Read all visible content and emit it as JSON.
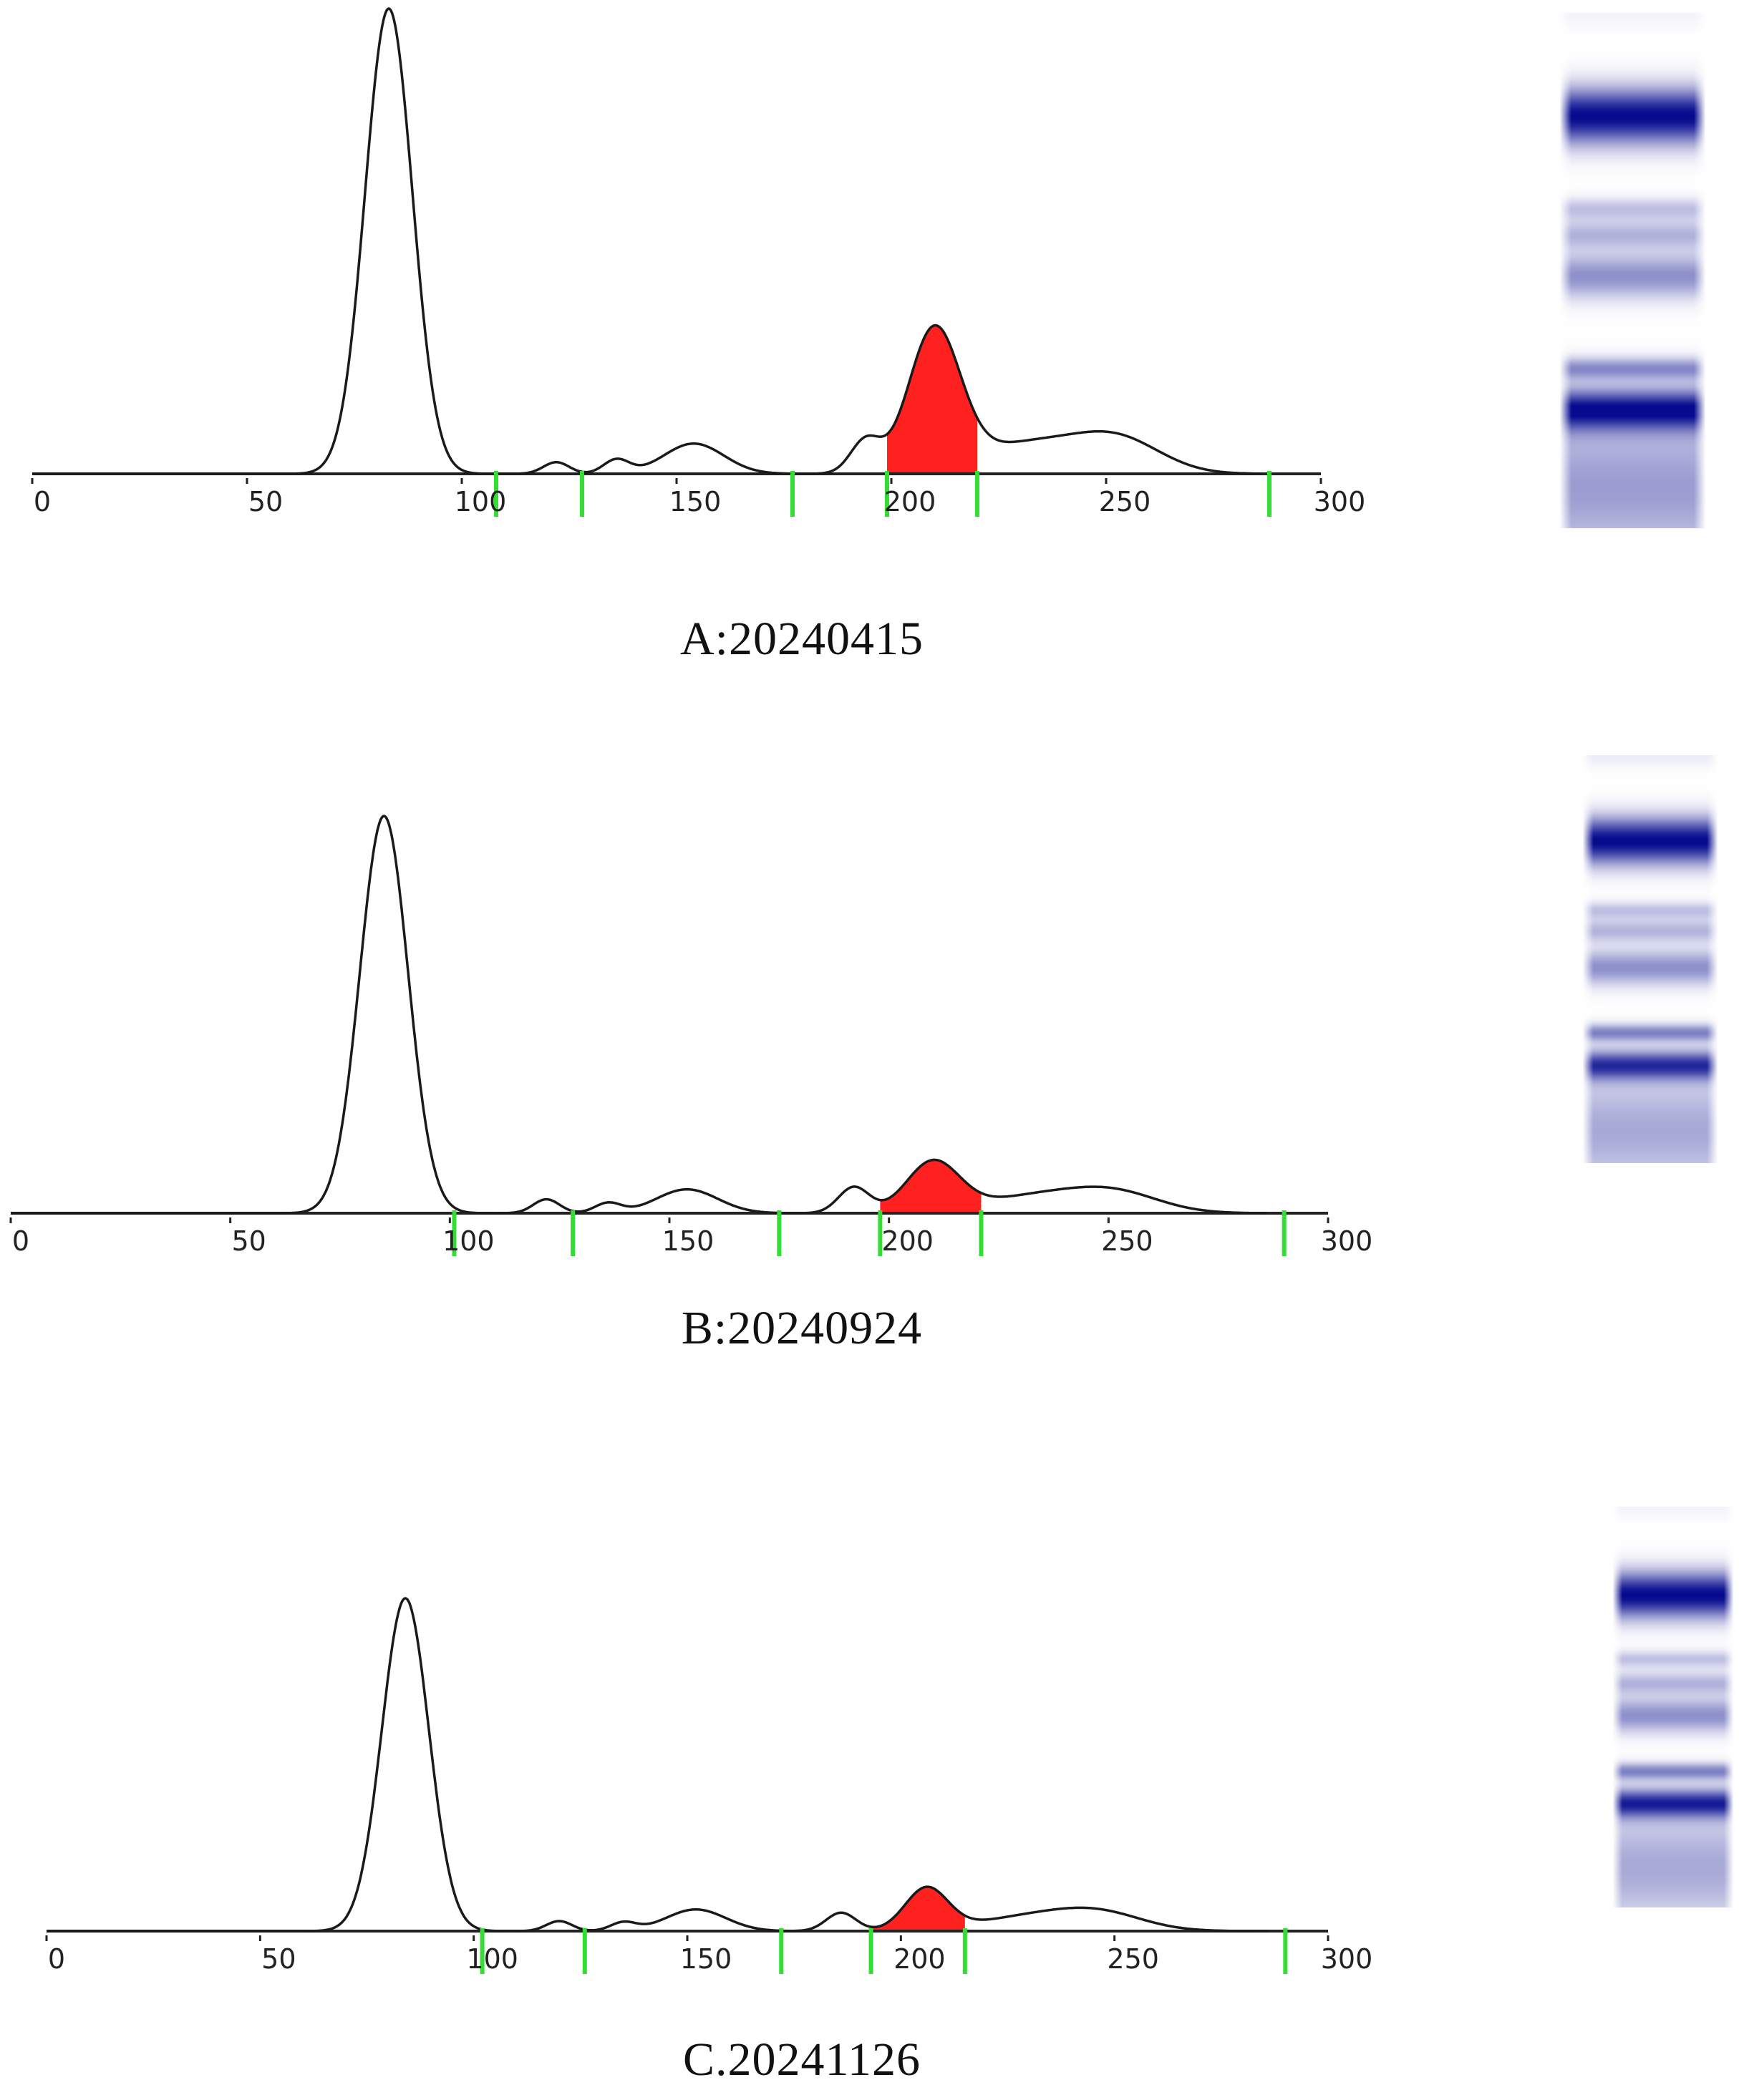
{
  "colors": {
    "trace": "#1a1a1a",
    "highlight": "#ff2020",
    "separator": "#33dd33",
    "band_dark": "#050a7a",
    "band_light": "#8a8fd0"
  },
  "panels": [
    {
      "caption": "A:20240415",
      "chart_data": {
        "type": "line",
        "x_ticks": [
          "0",
          "50",
          "100",
          "150",
          "200",
          "250",
          "300"
        ],
        "xlim": [
          0,
          300
        ],
        "ylim": [
          0,
          100
        ],
        "separators_x": [
          108,
          128,
          177,
          199,
          220,
          288
        ],
        "highlight_range": [
          199,
          220
        ],
        "peaks": [
          {
            "x": 83,
            "y": 100,
            "w": 5.5
          },
          {
            "x": 122,
            "y": 2.5,
            "w": 3
          },
          {
            "x": 136,
            "y": 3,
            "w": 3
          },
          {
            "x": 154,
            "y": 6.5,
            "w": 7
          },
          {
            "x": 194,
            "y": 7,
            "w": 3.5
          },
          {
            "x": 210,
            "y": 30,
            "w": 6
          },
          {
            "x": 232,
            "y": 6.5,
            "w": 14
          },
          {
            "x": 253,
            "y": 6.5,
            "w": 10
          }
        ]
      },
      "gel": {
        "bands": [
          {
            "pos": 0.0,
            "w": 0.04,
            "i": 0.05
          },
          {
            "pos": 0.2,
            "w": 0.075,
            "i": 1.0
          },
          {
            "pos": 0.38,
            "w": 0.03,
            "i": 0.25
          },
          {
            "pos": 0.43,
            "w": 0.04,
            "i": 0.3
          },
          {
            "pos": 0.51,
            "w": 0.06,
            "i": 0.45
          },
          {
            "pos": 0.69,
            "w": 0.03,
            "i": 0.45
          },
          {
            "pos": 0.77,
            "w": 0.055,
            "i": 0.92
          },
          {
            "pos": 0.92,
            "w": 0.2,
            "i": 0.4
          }
        ]
      }
    },
    {
      "caption": "B:20240924",
      "chart_data": {
        "type": "line",
        "x_ticks": [
          "0",
          "50",
          "100",
          "150",
          "200",
          "250",
          "300"
        ],
        "xlim": [
          0,
          300
        ],
        "ylim": [
          0,
          100
        ],
        "separators_x": [
          101,
          128,
          175,
          198,
          221,
          290
        ],
        "highlight_range": [
          198,
          221
        ],
        "peaks": [
          {
            "x": 85,
            "y": 100,
            "w": 5.5
          },
          {
            "x": 122,
            "y": 3.5,
            "w": 3
          },
          {
            "x": 136,
            "y": 2.5,
            "w": 3
          },
          {
            "x": 154,
            "y": 6,
            "w": 7
          },
          {
            "x": 192,
            "y": 6.5,
            "w": 3.5
          },
          {
            "x": 210,
            "y": 12.5,
            "w": 6
          },
          {
            "x": 235,
            "y": 4.5,
            "w": 14
          },
          {
            "x": 252,
            "y": 4,
            "w": 10
          }
        ]
      },
      "gel": {
        "bands": [
          {
            "pos": 0.0,
            "w": 0.04,
            "i": 0.08
          },
          {
            "pos": 0.21,
            "w": 0.08,
            "i": 1.0
          },
          {
            "pos": 0.38,
            "w": 0.03,
            "i": 0.25
          },
          {
            "pos": 0.43,
            "w": 0.04,
            "i": 0.3
          },
          {
            "pos": 0.52,
            "w": 0.06,
            "i": 0.45
          },
          {
            "pos": 0.68,
            "w": 0.03,
            "i": 0.5
          },
          {
            "pos": 0.76,
            "w": 0.05,
            "i": 0.8
          },
          {
            "pos": 0.92,
            "w": 0.19,
            "i": 0.35
          }
        ]
      }
    },
    {
      "caption": "C.20241126",
      "chart_data": {
        "type": "line",
        "x_ticks": [
          "0",
          "50",
          "100",
          "150",
          "200",
          "250",
          "300"
        ],
        "xlim": [
          0,
          300
        ],
        "ylim": [
          0,
          100
        ],
        "separators_x": [
          102,
          126,
          172,
          193,
          215,
          290
        ],
        "highlight_range": [
          193,
          215
        ],
        "peaks": [
          {
            "x": 84,
            "y": 100,
            "w": 5.5
          },
          {
            "x": 120,
            "y": 3,
            "w": 3
          },
          {
            "x": 135,
            "y": 2.5,
            "w": 3
          },
          {
            "x": 152,
            "y": 6.5,
            "w": 7
          },
          {
            "x": 186,
            "y": 5.5,
            "w": 3.5
          },
          {
            "x": 206,
            "y": 12.5,
            "w": 5
          },
          {
            "x": 232,
            "y": 4.5,
            "w": 14
          },
          {
            "x": 247,
            "y": 4,
            "w": 10
          }
        ]
      },
      "gel": {
        "bands": [
          {
            "pos": 0.0,
            "w": 0.04,
            "i": 0.05
          },
          {
            "pos": 0.22,
            "w": 0.08,
            "i": 1.0
          },
          {
            "pos": 0.38,
            "w": 0.03,
            "i": 0.25
          },
          {
            "pos": 0.44,
            "w": 0.04,
            "i": 0.3
          },
          {
            "pos": 0.52,
            "w": 0.06,
            "i": 0.45
          },
          {
            "pos": 0.66,
            "w": 0.03,
            "i": 0.5
          },
          {
            "pos": 0.74,
            "w": 0.05,
            "i": 0.85
          },
          {
            "pos": 0.9,
            "w": 0.19,
            "i": 0.35
          }
        ]
      }
    }
  ]
}
